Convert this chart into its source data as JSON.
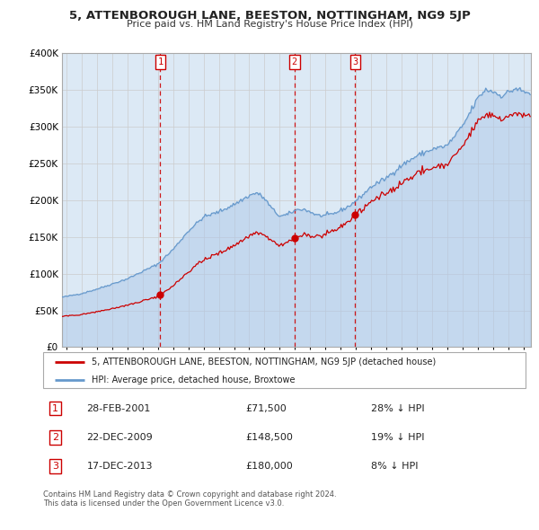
{
  "title": "5, ATTENBOROUGH LANE, BEESTON, NOTTINGHAM, NG9 5JP",
  "subtitle": "Price paid vs. HM Land Registry's House Price Index (HPI)",
  "legend_red": "5, ATTENBOROUGH LANE, BEESTON, NOTTINGHAM, NG9 5JP (detached house)",
  "legend_blue": "HPI: Average price, detached house, Broxtowe",
  "sales": [
    {
      "num": 1,
      "date": "28-FEB-2001",
      "price": 71500,
      "hpi_diff": "28% ↓ HPI"
    },
    {
      "num": 2,
      "date": "22-DEC-2009",
      "price": 148500,
      "hpi_diff": "19% ↓ HPI"
    },
    {
      "num": 3,
      "date": "17-DEC-2013",
      "price": 180000,
      "hpi_diff": "8% ↓ HPI"
    }
  ],
  "sale_dates_decimal": [
    2001.16,
    2009.97,
    2013.96
  ],
  "sale_prices": [
    71500,
    148500,
    180000
  ],
  "footer1": "Contains HM Land Registry data © Crown copyright and database right 2024.",
  "footer2": "This data is licensed under the Open Government Licence v3.0.",
  "background_color": "#dce9f5",
  "red_color": "#cc0000",
  "blue_color": "#6699cc",
  "blue_fill_color": "#adc8e8",
  "grid_color": "#cccccc",
  "vline_color": "#cc0000",
  "ylim_max": 400000,
  "xlim_start": 1994.7,
  "xlim_end": 2025.5,
  "hpi_key_points": [
    [
      1994.7,
      68000
    ],
    [
      1995.0,
      69000
    ],
    [
      1996.0,
      73000
    ],
    [
      1997.0,
      79000
    ],
    [
      1998.0,
      86000
    ],
    [
      1999.0,
      93000
    ],
    [
      2000.0,
      103000
    ],
    [
      2001.0,
      113000
    ],
    [
      2002.0,
      133000
    ],
    [
      2003.0,
      158000
    ],
    [
      2004.0,
      177000
    ],
    [
      2005.0,
      184000
    ],
    [
      2006.0,
      194000
    ],
    [
      2007.0,
      206000
    ],
    [
      2007.5,
      210000
    ],
    [
      2008.0,
      202000
    ],
    [
      2008.5,
      188000
    ],
    [
      2009.0,
      178000
    ],
    [
      2009.5,
      180000
    ],
    [
      2010.0,
      186000
    ],
    [
      2010.5,
      188000
    ],
    [
      2011.0,
      184000
    ],
    [
      2011.5,
      179000
    ],
    [
      2012.0,
      179000
    ],
    [
      2012.5,
      181000
    ],
    [
      2013.0,
      186000
    ],
    [
      2013.5,
      191000
    ],
    [
      2014.0,
      199000
    ],
    [
      2014.5,
      208000
    ],
    [
      2015.0,
      218000
    ],
    [
      2016.0,
      230000
    ],
    [
      2017.0,
      247000
    ],
    [
      2018.0,
      260000
    ],
    [
      2019.0,
      269000
    ],
    [
      2020.0,
      274000
    ],
    [
      2021.0,
      300000
    ],
    [
      2022.0,
      338000
    ],
    [
      2022.5,
      350000
    ],
    [
      2023.0,
      348000
    ],
    [
      2023.5,
      342000
    ],
    [
      2024.0,
      346000
    ],
    [
      2024.5,
      352000
    ],
    [
      2025.0,
      347000
    ],
    [
      2025.5,
      345000
    ]
  ]
}
